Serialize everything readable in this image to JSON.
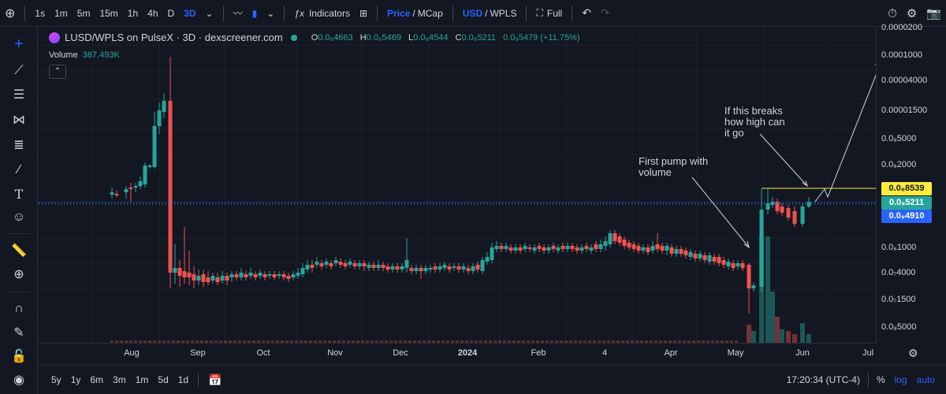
{
  "toolbar": {
    "intervals": [
      "1s",
      "1m",
      "5m",
      "15m",
      "1h",
      "4h",
      "D",
      "3D"
    ],
    "active_interval": "3D",
    "indicators_label": "Indicators",
    "price_label": "Price",
    "mcap_label": "MCap",
    "usd_label": "USD",
    "wpls_label": "WPLS",
    "full_label": "Full"
  },
  "legend": {
    "symbol": "LUSD/WPLS on PulseX · 3D · dexscreener.com",
    "o_label": "O",
    "o": "0.0₈4663",
    "h_label": "H",
    "h": "0.0₈5469",
    "l_label": "L",
    "l": "0.0₈4544",
    "c_label": "C",
    "c": "0.0₈5211",
    "change": "0.0₉5479 (+11.75%)",
    "volume_label": "Volume",
    "volume": "387.493K"
  },
  "annotations": [
    {
      "text": "First pump with\nvolume"
    },
    {
      "text": "If this breaks\nhow high can\nit go"
    }
  ],
  "price_scale": {
    "labels": [
      "0.0000200",
      "0.0001000",
      "0.00004000",
      "0.00001500",
      "0.0₆5000",
      "0.0₆2000",
      "0.0₆1000",
      "0.0₇4000",
      "0.0₇1500",
      "0.0₈5000"
    ],
    "tags": {
      "resistance": "0.0₈8539",
      "last": "0.0₈5211",
      "crosshair": "0.0₈4910"
    }
  },
  "time_scale": {
    "labels": [
      "Aug",
      "Sep",
      "Oct",
      "Nov",
      "Dec",
      "2024",
      "Feb",
      "4",
      "Apr",
      "May",
      "Jun",
      "Jul"
    ]
  },
  "bottombar": {
    "ranges": [
      "5y",
      "1y",
      "6m",
      "3m",
      "1m",
      "5d",
      "1d"
    ],
    "time": "17:20:34 (UTC-4)",
    "pct": "%",
    "log": "log",
    "auto": "auto"
  },
  "colors": {
    "up": "#26a69a",
    "down": "#ef5350",
    "background": "#131722",
    "resistance": "#ffeb3b",
    "last_price_line": "#2962ff"
  },
  "chart_data": {
    "type": "candlestick",
    "scale": "log",
    "interval": "3D",
    "candles_approx": [
      {
        "period": "Jul",
        "o": 1.0,
        "h": 1.05,
        "l": 0.95,
        "c": 1.0
      },
      {
        "period": "early Aug",
        "o": 1.0,
        "h": 2.0,
        "l": 0.98,
        "c": 1.8
      },
      {
        "period": "mid Aug",
        "o": 1.8,
        "h": 12.0,
        "l": 1.7,
        "c": 9.0
      },
      {
        "period": "late Aug",
        "o": 9.0,
        "h": 14.0,
        "l": 0.22,
        "c": 0.28
      },
      {
        "period": "Sep-Apr",
        "range_low": 0.25,
        "range_high": 0.55
      },
      {
        "period": "late Apr",
        "o": 0.3,
        "h": 0.32,
        "l": 0.12,
        "c": 0.16
      },
      {
        "period": "mid May",
        "o": 0.16,
        "h": 0.9,
        "l": 0.14,
        "c": 0.75
      },
      {
        "period": "late May",
        "o": 0.75,
        "h": 0.85,
        "l": 0.5,
        "c": 0.55
      },
      {
        "period": "early Jun",
        "o": 0.5,
        "h": 0.62,
        "l": 0.45,
        "c": 0.52
      }
    ],
    "resistance_level": "0.0₈8539",
    "last_price": "0.0₈5211",
    "volume_spike": "mid May"
  }
}
